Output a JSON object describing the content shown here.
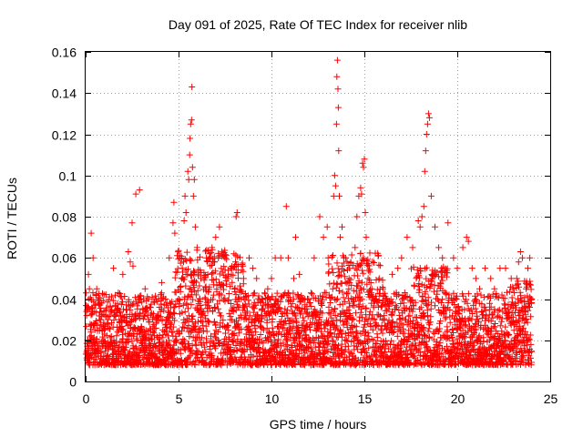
{
  "chart_data": {
    "type": "scatter",
    "title": "Day 091 of 2025, Rate Of TEC Index for receiver nlib",
    "xlabel": "GPS time / hours",
    "ylabel": "ROTI / TECUs",
    "xlim": [
      0,
      25
    ],
    "ylim": [
      0,
      0.16
    ],
    "x_ticks": [
      0,
      5,
      10,
      15,
      20,
      25
    ],
    "x_tick_labels": [
      "0",
      "5",
      "10",
      "15",
      "20",
      "25"
    ],
    "y_ticks": [
      0,
      0.02,
      0.04,
      0.06,
      0.08,
      0.1,
      0.12,
      0.14,
      0.16
    ],
    "y_tick_labels": [
      "0",
      "0.02",
      "0.04",
      "0.06",
      "0.08",
      "0.1",
      "0.12",
      "0.14",
      "0.16"
    ],
    "grid": true,
    "marker": "plus",
    "marker_color": "#ff0000",
    "series": [
      {
        "name": "ROTI",
        "x": [
          0.1,
          0.15,
          0.2,
          0.3,
          0.4,
          0.5,
          0.6,
          0.8,
          1.0,
          1.2,
          1.5,
          1.7,
          1.8,
          2.0,
          2.3,
          2.4,
          2.5,
          2.55,
          2.7,
          2.9,
          2.95,
          3.2,
          3.5,
          3.8,
          4.1,
          4.3,
          4.5,
          4.7,
          4.75,
          4.8,
          5.0,
          5.2,
          5.3,
          5.35,
          5.4,
          5.5,
          5.55,
          5.6,
          5.62,
          5.65,
          5.7,
          5.72,
          5.75,
          5.8,
          5.85,
          5.9,
          6.0,
          6.2,
          6.5,
          6.8,
          7.0,
          7.2,
          7.5,
          7.8,
          8.1,
          8.15,
          8.5,
          8.8,
          9.0,
          9.2,
          9.5,
          9.8,
          10.0,
          10.2,
          10.5,
          10.8,
          10.9,
          11.2,
          11.3,
          11.5,
          11.8,
          12.0,
          12.3,
          12.6,
          12.8,
          13.0,
          13.05,
          13.3,
          13.35,
          13.4,
          13.45,
          13.5,
          13.52,
          13.55,
          13.58,
          13.6,
          13.62,
          13.65,
          13.7,
          13.8,
          14.0,
          14.2,
          14.5,
          14.6,
          14.7,
          14.8,
          14.85,
          14.9,
          14.95,
          15.0,
          15.05,
          15.1,
          15.2,
          15.4,
          15.6,
          15.8,
          16.0,
          16.2,
          16.5,
          16.8,
          17.0,
          17.3,
          17.6,
          17.9,
          18.0,
          18.1,
          18.2,
          18.25,
          18.3,
          18.35,
          18.4,
          18.45,
          18.5,
          18.6,
          18.8,
          19.0,
          19.2,
          19.5,
          19.8,
          20.0,
          20.3,
          20.5,
          20.6,
          20.8,
          21.0,
          21.2,
          21.5,
          21.8,
          22.0,
          22.3,
          22.6,
          22.9,
          23.0,
          23.2,
          23.3,
          23.4,
          23.5,
          23.7,
          23.8,
          23.9,
          24.0
        ],
        "y": [
          0.02,
          0.052,
          0.045,
          0.072,
          0.06,
          0.025,
          0.045,
          0.03,
          0.025,
          0.03,
          0.055,
          0.035,
          0.03,
          0.052,
          0.063,
          0.058,
          0.077,
          0.056,
          0.091,
          0.093,
          0.04,
          0.045,
          0.025,
          0.03,
          0.048,
          0.04,
          0.06,
          0.077,
          0.087,
          0.072,
          0.04,
          0.055,
          0.078,
          0.09,
          0.082,
          0.102,
          0.098,
          0.11,
          0.118,
          0.125,
          0.127,
          0.143,
          0.104,
          0.09,
          0.098,
          0.075,
          0.065,
          0.05,
          0.06,
          0.065,
          0.07,
          0.075,
          0.06,
          0.055,
          0.08,
          0.082,
          0.05,
          0.06,
          0.055,
          0.05,
          0.04,
          0.045,
          0.05,
          0.06,
          0.06,
          0.085,
          0.06,
          0.05,
          0.07,
          0.052,
          0.04,
          0.04,
          0.06,
          0.08,
          0.07,
          0.075,
          0.06,
          0.045,
          0.09,
          0.1,
          0.095,
          0.125,
          0.148,
          0.156,
          0.142,
          0.133,
          0.112,
          0.09,
          0.07,
          0.075,
          0.06,
          0.055,
          0.065,
          0.08,
          0.09,
          0.094,
          0.091,
          0.106,
          0.104,
          0.108,
          0.082,
          0.07,
          0.05,
          0.045,
          0.04,
          0.05,
          0.045,
          0.04,
          0.052,
          0.055,
          0.06,
          0.07,
          0.065,
          0.078,
          0.075,
          0.08,
          0.085,
          0.102,
          0.112,
          0.12,
          0.125,
          0.13,
          0.128,
          0.09,
          0.075,
          0.065,
          0.06,
          0.077,
          0.06,
          0.055,
          0.065,
          0.07,
          0.068,
          0.055,
          0.05,
          0.045,
          0.055,
          0.05,
          0.045,
          0.055,
          0.055,
          0.05,
          0.045,
          0.05,
          0.058,
          0.063,
          0.06,
          0.045,
          0.055,
          0.06,
          0.04
        ]
      }
    ],
    "baseline_band": {
      "description_values_min": 0.008,
      "description_values_max": 0.04,
      "density_points_per_hour": 160
    }
  }
}
